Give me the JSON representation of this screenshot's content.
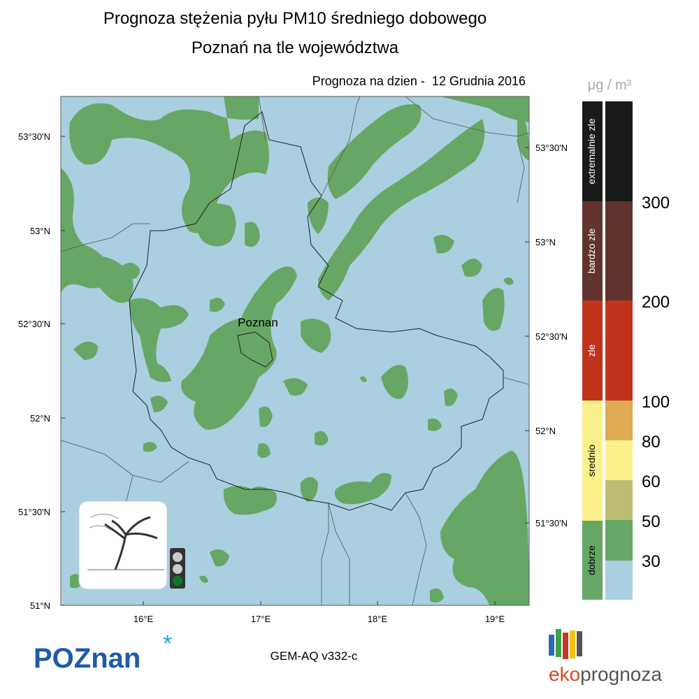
{
  "header": {
    "title": "Prognoza stężenia pyłu PM10 średniego dobowego",
    "subtitle": "Poznań na tle województwa",
    "forecast_date": "Prognoza na dzien -  12 Grudnia 2016"
  },
  "map": {
    "city": "Poznan",
    "lat_left": [
      "53°30'N",
      "53°N",
      "52°30'N",
      "52°N",
      "51°30'N",
      "51°N"
    ],
    "lat_right": [
      "53°30'N",
      "53°N",
      "52°30'N",
      "52°N",
      "51°30'N"
    ],
    "lon_bottom": [
      "16°E",
      "17°E",
      "18°E",
      "19°E"
    ]
  },
  "legend": {
    "unit": "μg / m³",
    "categories": [
      "extremalnie zle",
      "bardzo zle",
      "zle",
      "srednio",
      "dobrze"
    ],
    "thresholds": [
      300,
      200,
      100,
      80,
      60,
      50,
      30
    ]
  },
  "footer": {
    "model": "GEM-AQ v332-c",
    "logo_left": "POZnan",
    "logo_right_a": "eko",
    "logo_right_b": "prognoza"
  }
}
